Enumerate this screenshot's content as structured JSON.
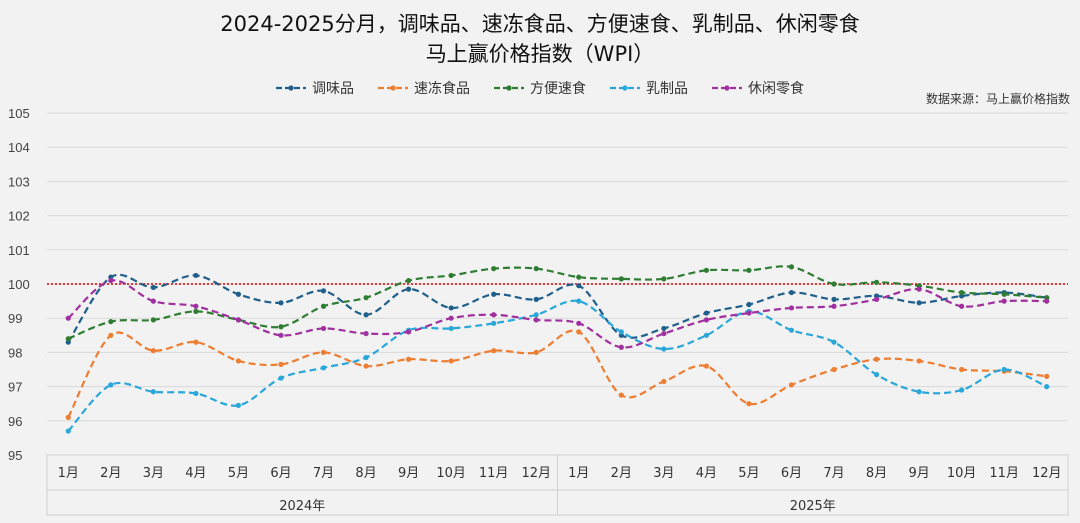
{
  "chart_data": {
    "type": "line",
    "title": "2024-2025分月，调味品、速冻食品、方便速食、乳制品、休闲零食",
    "subtitle": "马上赢价格指数（WPI）",
    "source": "数据来源：马上赢价格指数",
    "categories": [
      "1月",
      "2月",
      "3月",
      "4月",
      "5月",
      "6月",
      "7月",
      "8月",
      "9月",
      "10月",
      "11月",
      "12月",
      "1月",
      "2月",
      "3月",
      "4月",
      "5月",
      "6月",
      "7月",
      "8月",
      "9月",
      "10月",
      "11月",
      "12月"
    ],
    "year_groups": [
      {
        "label": "2024年",
        "count": 12
      },
      {
        "label": "2025年",
        "count": 12
      }
    ],
    "ylim": [
      95,
      105
    ],
    "yticks": [
      95,
      96,
      97,
      98,
      99,
      100,
      101,
      102,
      103,
      104,
      105
    ],
    "reference_line": 100,
    "grid": true,
    "legend_position": "top",
    "series": [
      {
        "name": "调味品",
        "color": "#1f5f8b",
        "values": [
          98.3,
          100.2,
          99.9,
          100.25,
          99.7,
          99.45,
          99.8,
          99.1,
          99.85,
          99.3,
          99.7,
          99.55,
          99.95,
          98.5,
          98.7,
          99.15,
          99.4,
          99.75,
          99.55,
          99.65,
          99.45,
          99.65,
          99.75,
          99.6
        ]
      },
      {
        "name": "速冻食品",
        "color": "#ed7d31",
        "values": [
          96.1,
          98.5,
          98.05,
          98.3,
          97.75,
          97.65,
          98.0,
          97.6,
          97.8,
          97.75,
          98.05,
          98.0,
          98.6,
          96.75,
          97.15,
          97.6,
          96.5,
          97.05,
          97.5,
          97.8,
          97.75,
          97.5,
          97.45,
          97.3
        ]
      },
      {
        "name": "方便速食",
        "color": "#2e7d32",
        "values": [
          98.4,
          98.9,
          98.95,
          99.2,
          98.95,
          98.75,
          99.35,
          99.6,
          100.1,
          100.25,
          100.45,
          100.45,
          100.2,
          100.15,
          100.15,
          100.4,
          100.4,
          100.5,
          100.0,
          100.05,
          99.95,
          99.75,
          99.7,
          99.6
        ]
      },
      {
        "name": "乳制品",
        "color": "#2aa7d9",
        "values": [
          95.7,
          97.05,
          96.85,
          96.8,
          96.45,
          97.25,
          97.55,
          97.85,
          98.65,
          98.7,
          98.85,
          99.1,
          99.5,
          98.6,
          98.1,
          98.5,
          99.2,
          98.65,
          98.3,
          97.35,
          96.85,
          96.9,
          97.5,
          97.0
        ]
      },
      {
        "name": "休闲零食",
        "color": "#a0309f",
        "values": [
          99.0,
          100.1,
          99.5,
          99.35,
          98.95,
          98.5,
          98.7,
          98.55,
          98.6,
          99.0,
          99.1,
          98.95,
          98.85,
          98.15,
          98.55,
          98.95,
          99.15,
          99.3,
          99.35,
          99.55,
          99.85,
          99.35,
          99.5,
          99.5
        ]
      }
    ]
  }
}
